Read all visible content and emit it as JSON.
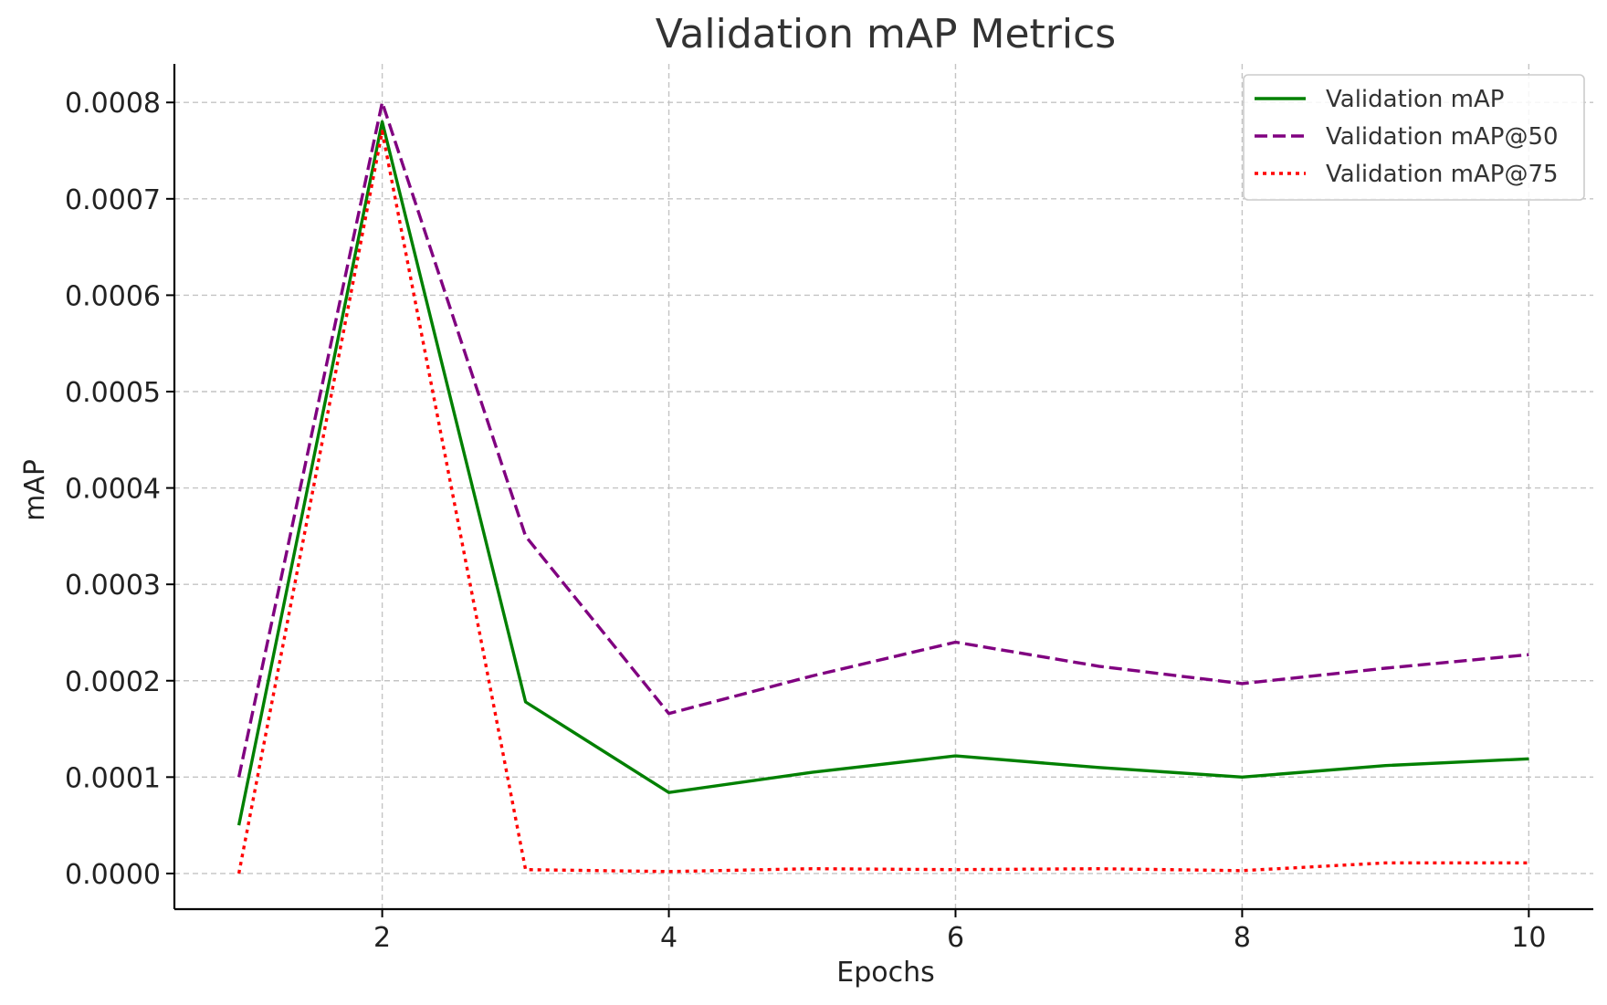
{
  "chart_data": {
    "type": "line",
    "title": "Validation mAP Metrics",
    "xlabel": "Epochs",
    "ylabel": "mAP",
    "x": [
      1,
      2,
      3,
      4,
      5,
      6,
      7,
      8,
      9,
      10
    ],
    "xlim": [
      0.55,
      10.45
    ],
    "ylim": [
      -3.7e-05,
      0.00084
    ],
    "xticks": [
      2,
      4,
      6,
      8,
      10
    ],
    "xtick_labels": [
      "2",
      "4",
      "6",
      "8",
      "10"
    ],
    "yticks": [
      0,
      0.0001,
      0.0002,
      0.0003,
      0.0004,
      0.0005,
      0.0006,
      0.0007,
      0.0008
    ],
    "ytick_labels": [
      "0.0000",
      "0.0001",
      "0.0002",
      "0.0003",
      "0.0004",
      "0.0005",
      "0.0006",
      "0.0007",
      "0.0008"
    ],
    "grid": true,
    "legend_position": "top-right",
    "series": [
      {
        "name": "Validation mAP",
        "color": "#008000",
        "style": "solid",
        "values": [
          5e-05,
          0.00078,
          0.000178,
          8.4e-05,
          0.000105,
          0.000122,
          0.00011,
          0.0001,
          0.000112,
          0.000119
        ]
      },
      {
        "name": "Validation mAP@50",
        "color": "#800080",
        "style": "dashed",
        "values": [
          0.0001,
          0.0008,
          0.00035,
          0.000166,
          0.000205,
          0.00024,
          0.000215,
          0.000197,
          0.000213,
          0.000227
        ]
      },
      {
        "name": "Validation mAP@75",
        "color": "#ff0000",
        "style": "dotted",
        "values": [
          0.0,
          0.00077,
          4e-06,
          2e-06,
          5e-06,
          4e-06,
          5e-06,
          3e-06,
          1.1e-05,
          1.1e-05
        ]
      }
    ]
  }
}
